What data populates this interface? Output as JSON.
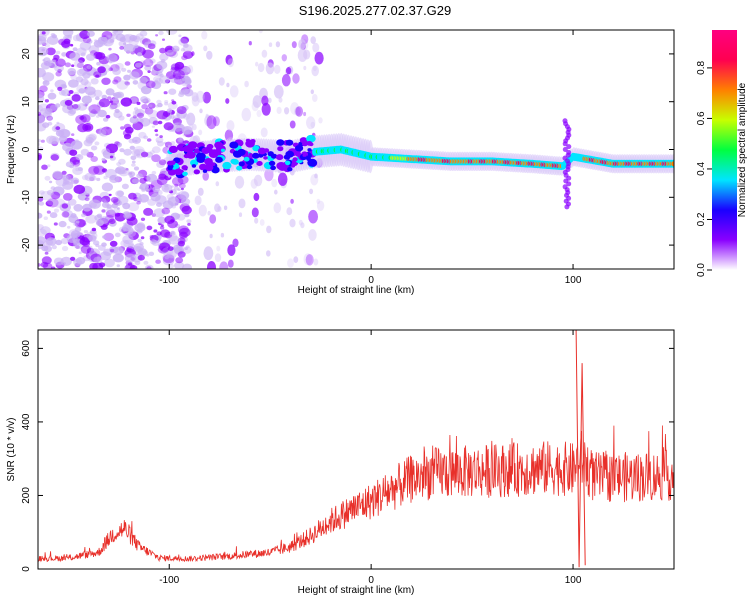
{
  "title": "S196.2025.277.02.37.G29",
  "chart_data": [
    {
      "type": "heatmap",
      "name": "spectrogram",
      "xlabel": "Height of straight line (km)",
      "ylabel": "Frequency (Hz)",
      "xlim": [
        -165,
        150
      ],
      "ylim": [
        -25,
        25
      ],
      "x_ticks": [
        -100,
        0,
        100
      ],
      "y_ticks": [
        -20,
        -10,
        0,
        10,
        20
      ],
      "colorbar": {
        "label": "Normalized spectral amplitude",
        "range": [
          0.0,
          0.95
        ],
        "ticks": [
          0.0,
          0.2,
          0.4,
          0.6,
          0.8
        ],
        "colors": [
          "#ffffff",
          "#8a00ff",
          "#1a00ff",
          "#00e5ff",
          "#00ff40",
          "#c8ff00",
          "#ff8000",
          "#ff0050",
          "#ff0080"
        ]
      },
      "ridge": {
        "x": [
          -100,
          -80,
          -60,
          -40,
          -28,
          -15,
          0,
          20,
          40,
          60,
          80,
          95,
          100,
          120,
          150
        ],
        "freq": [
          -2.5,
          -1.5,
          -1.0,
          -1.5,
          -0.5,
          0,
          -1.5,
          -2,
          -2.5,
          -2.5,
          -3,
          -3.5,
          -1.5,
          -3,
          -3
        ]
      }
    },
    {
      "type": "line",
      "name": "snr",
      "xlabel": "Height of straight line (km)",
      "ylabel": "SNR (10 * v/v)",
      "xlim": [
        -165,
        150
      ],
      "ylim": [
        0,
        650
      ],
      "x_ticks": [
        -100,
        0,
        100
      ],
      "y_ticks": [
        0,
        200,
        400,
        600
      ],
      "color": "#e8302a",
      "envelope": {
        "x": [
          -165,
          -150,
          -135,
          -128,
          -122,
          -115,
          -105,
          -90,
          -70,
          -50,
          -40,
          -30,
          -20,
          -10,
          0,
          10,
          20,
          30,
          50,
          70,
          90,
          100,
          104,
          110,
          130,
          150
        ],
        "y": [
          28,
          30,
          45,
          95,
          110,
          60,
          30,
          28,
          35,
          45,
          60,
          90,
          130,
          160,
          185,
          215,
          245,
          260,
          265,
          270,
          275,
          270,
          300,
          250,
          250,
          255
        ]
      },
      "spikes": [
        {
          "x": 101.5,
          "y": 650
        },
        {
          "x": 103.0,
          "y": 5
        },
        {
          "x": 104.5,
          "y": 560
        },
        {
          "x": 106.0,
          "y": 10
        }
      ]
    }
  ]
}
